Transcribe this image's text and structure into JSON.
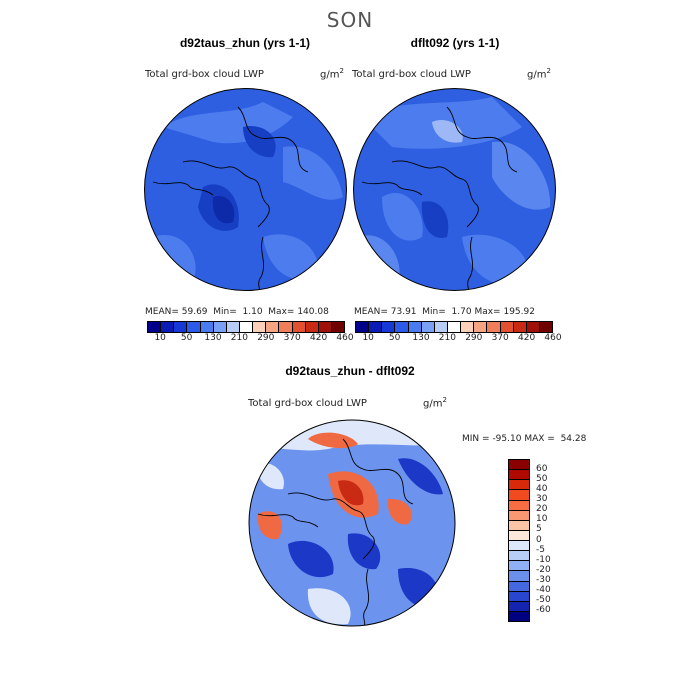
{
  "season": "SON",
  "panel1": {
    "title": "d92taus_zhun (yrs 1-1)",
    "field": "Total grd-box cloud LWP",
    "units": "g/m",
    "units_sup": "2",
    "mean_label": "MEAN=",
    "mean": "59.69",
    "min_label": "Min=",
    "min": "1.10",
    "max_label": "Max=",
    "max": "140.08"
  },
  "panel2": {
    "title": "dflt092 (yrs 1-1)",
    "field": "Total grd-box cloud LWP",
    "units": "g/m",
    "units_sup": "2",
    "mean_label": "MEAN=",
    "mean": "73.91",
    "min_label": "Min=",
    "min": "1.70",
    "max_label": "Max=",
    "max": "195.92"
  },
  "panel3": {
    "title": "d92taus_zhun - dflt092",
    "field": "Total grd-box cloud LWP",
    "units": "g/m",
    "units_sup": "2",
    "min_label": "MIN =",
    "min": "-95.10",
    "max_label": "MAX =",
    "max": "54.28"
  },
  "colorbar_abs": {
    "colors": [
      "#00008b",
      "#0a1cb4",
      "#1638d6",
      "#2d5ae8",
      "#4a7cf0",
      "#78a0f5",
      "#b8cdf6",
      "#ffffff",
      "#fbd0b8",
      "#f6a584",
      "#f07d5c",
      "#e2512f",
      "#c92a14",
      "#a00f08",
      "#700000"
    ],
    "labels": [
      "10",
      "50",
      "130",
      "210",
      "290",
      "370",
      "420",
      "460"
    ]
  },
  "colorbar_diff": {
    "colors": [
      "#8b0000",
      "#b00a00",
      "#d82a0a",
      "#f04a1e",
      "#f86e42",
      "#f89872",
      "#fbc4a6",
      "#fde8dc",
      "#dde8fa",
      "#b8cdf6",
      "#8fb0f4",
      "#6a90ec",
      "#4468e0",
      "#2846d0",
      "#1424b0",
      "#000080"
    ],
    "labels": [
      "60",
      "50",
      "40",
      "30",
      "20",
      "10",
      "5",
      "0",
      "-5",
      "-10",
      "-20",
      "-30",
      "-40",
      "-50",
      "-60"
    ]
  },
  "map_colors": {
    "ocean_mid": "#2e5fe0",
    "ocean_dark": "#173fc4",
    "ocean_light": "#4d7cef",
    "diff_base": "#6c93ee",
    "diff_red": "#ef6a43",
    "diff_dark": "#1c38c7",
    "diff_pale": "#dfe8fb"
  }
}
